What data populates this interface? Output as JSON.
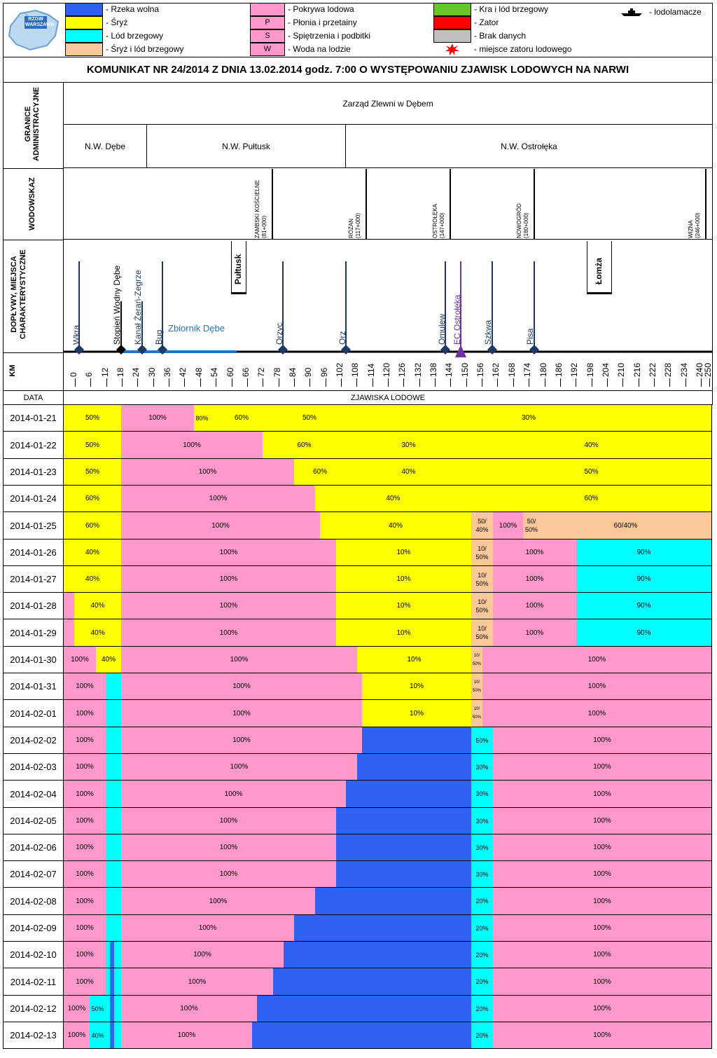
{
  "legend": {
    "logo_text": "RZGW WARSZAWA",
    "items": [
      {
        "color": "#2f62f0",
        "symbol": "",
        "label": "- Rzeka wolna"
      },
      {
        "color": "#ffff00",
        "symbol": "",
        "label": "- Śryż"
      },
      {
        "color": "#00ffff",
        "symbol": "",
        "label": "- Lód brzegowy"
      },
      {
        "color": "#fcc89a",
        "symbol": "",
        "label": "- Śryż i lód brzegowy"
      },
      {
        "color": "#ff99cc",
        "symbol": "",
        "label": "- Pokrywa lodowa"
      },
      {
        "color": "#ff99cc",
        "symbol": "P",
        "label": "- Płonia i przetainy"
      },
      {
        "color": "#ff99cc",
        "symbol": "S",
        "label": "- Spiętrzenia i podbitki"
      },
      {
        "color": "#ff99cc",
        "symbol": "W",
        "label": "- Woda na lodzie"
      },
      {
        "color": "#6ac42b",
        "symbol": "",
        "label": "- Kra i lód brzegowy"
      },
      {
        "color": "#ff0000",
        "symbol": "",
        "label": "- Zator"
      },
      {
        "color": "#c0c0c0",
        "symbol": "",
        "label": "- Brak danych"
      },
      {
        "color": "#ff0000",
        "symbol": "star",
        "label": "- miejsce zatoru lodowego"
      },
      {
        "color": "#000000",
        "symbol": "ship",
        "label": "- lodolamacze"
      }
    ]
  },
  "title": "KOMUNIKAT NR 24/2014 Z DNIA 13.02.2014 godz. 7:00 O WYSTĘPOWANIU ZJAWISK LODOWYCH NA NARWI",
  "row_labels": {
    "granice": "GRANICE ADMINISTRACYJNE",
    "wodowskaz": "WODOWSKAZ",
    "doplywy": "DOPŁYWY, MIEJSCA CHARAKTERYSTYCZNE",
    "km": "KM",
    "data": "DATA",
    "zjawiska": "ZJAWISKA LODOWE"
  },
  "admin": {
    "top": "Zarząd Zlewni w Dębem",
    "units": [
      "N.W. Dębe",
      "N.W. Pułtusk",
      "N.W. Ostrołęka"
    ]
  },
  "gauges": [
    {
      "name": "ZAMBSKI KOŚCIELNE",
      "km": "(81+000)"
    },
    {
      "name": "RÓŻAN",
      "km": "(117+000)"
    },
    {
      "name": "OSTROŁĘKA",
      "km": "(147+000)"
    },
    {
      "name": "NOWOGRÓD",
      "km": "(180+000)"
    },
    {
      "name": "WIZNA",
      "km": "(246+000)"
    }
  ],
  "tributaries": [
    "Wkra",
    "Stopień Wodny Dębe",
    "Kanał Żerań-Zegrze",
    "Bug",
    "Orzyc",
    "Orz",
    "Omulew",
    "EC Ostrołęka",
    "Szkwa",
    "Pisa"
  ],
  "towns": [
    "Pułtusk",
    "Łomża"
  ],
  "reservoir": "Zbiornik Dębe",
  "km_ticks": [
    "0",
    "6",
    "12",
    "18",
    "24",
    "30",
    "36",
    "42",
    "48",
    "54",
    "60",
    "66",
    "72",
    "78",
    "84",
    "90",
    "96",
    "102",
    "108",
    "114",
    "120",
    "126",
    "132",
    "138",
    "144",
    "150",
    "156",
    "162",
    "168",
    "174",
    "180",
    "186",
    "192",
    "198",
    "204",
    "210",
    "216",
    "222",
    "228",
    "234",
    "240",
    "250"
  ],
  "colors": {
    "Y": "#ffff00",
    "P": "#ff99cc",
    "C": "#00ffff",
    "B": "#2f62f0",
    "O": "#fcc89a"
  },
  "rows": [
    {
      "date": "2014-01-21",
      "segs": [
        [
          "Y",
          91,
          173,
          "50%"
        ],
        [
          "P",
          173,
          277,
          "100%"
        ],
        [
          "Y",
          277,
          300,
          "80%"
        ],
        [
          "Y",
          300,
          390,
          "60%"
        ],
        [
          "Y",
          390,
          494,
          "50%"
        ],
        [
          "Y",
          494,
          1016,
          "30%"
        ]
      ]
    },
    {
      "date": "2014-01-22",
      "segs": [
        [
          "Y",
          91,
          173,
          "50%"
        ],
        [
          "P",
          173,
          375,
          "100%"
        ],
        [
          "Y",
          375,
          494,
          "60%"
        ],
        [
          "Y",
          494,
          673,
          "30%"
        ],
        [
          "Y",
          673,
          1016,
          "40%"
        ]
      ]
    },
    {
      "date": "2014-01-23",
      "segs": [
        [
          "Y",
          91,
          173,
          "50%"
        ],
        [
          "P",
          173,
          420,
          "100%"
        ],
        [
          "Y",
          420,
          494,
          "60%"
        ],
        [
          "Y",
          494,
          673,
          "40%"
        ],
        [
          "Y",
          673,
          1016,
          "50%"
        ]
      ]
    },
    {
      "date": "2014-01-24",
      "segs": [
        [
          "Y",
          91,
          173,
          "60%"
        ],
        [
          "P",
          173,
          450,
          "100%"
        ],
        [
          "Y",
          450,
          673,
          "40%"
        ],
        [
          "Y",
          673,
          1016,
          "60%"
        ]
      ]
    },
    {
      "date": "2014-01-25",
      "segs": [
        [
          "Y",
          91,
          173,
          "60%"
        ],
        [
          "P",
          173,
          457,
          "100%"
        ],
        [
          "Y",
          457,
          673,
          "40%"
        ],
        [
          "O",
          673,
          704,
          "50/ 40%"
        ],
        [
          "P",
          704,
          747,
          "100%"
        ],
        [
          "O",
          747,
          771,
          "50/ 50%"
        ],
        [
          "O",
          771,
          1016,
          "60/40%"
        ]
      ]
    },
    {
      "date": "2014-01-26",
      "segs": [
        [
          "Y",
          91,
          173,
          "40%"
        ],
        [
          "P",
          173,
          480,
          "100%"
        ],
        [
          "Y",
          480,
          673,
          "10%"
        ],
        [
          "O",
          673,
          704,
          "10/ 50%"
        ],
        [
          "P",
          704,
          823,
          "100%"
        ],
        [
          "C",
          823,
          1016,
          "90%"
        ]
      ]
    },
    {
      "date": "2014-01-27",
      "segs": [
        [
          "Y",
          91,
          173,
          "40%"
        ],
        [
          "P",
          173,
          480,
          "100%"
        ],
        [
          "Y",
          480,
          673,
          "10%"
        ],
        [
          "O",
          673,
          704,
          "10/ 50%"
        ],
        [
          "P",
          704,
          823,
          "100%"
        ],
        [
          "C",
          823,
          1016,
          "90%"
        ]
      ]
    },
    {
      "date": "2014-01-28",
      "segs": [
        [
          "P",
          91,
          106,
          ""
        ],
        [
          "Y",
          106,
          173,
          "40%"
        ],
        [
          "P",
          173,
          480,
          "100%"
        ],
        [
          "Y",
          480,
          673,
          "10%"
        ],
        [
          "O",
          673,
          704,
          "10/ 50%"
        ],
        [
          "P",
          704,
          823,
          "100%"
        ],
        [
          "C",
          823,
          1016,
          "90%"
        ]
      ]
    },
    {
      "date": "2014-01-29",
      "segs": [
        [
          "P",
          91,
          106,
          ""
        ],
        [
          "Y",
          106,
          173,
          "40%"
        ],
        [
          "P",
          173,
          480,
          "100%"
        ],
        [
          "Y",
          480,
          673,
          "10%"
        ],
        [
          "O",
          673,
          704,
          "10/ 50%"
        ],
        [
          "P",
          704,
          823,
          "100%"
        ],
        [
          "C",
          823,
          1016,
          "90%"
        ]
      ]
    },
    {
      "date": "2014-01-30",
      "segs": [
        [
          "P",
          91,
          137,
          "100%"
        ],
        [
          "Y",
          137,
          173,
          "40%"
        ],
        [
          "P",
          173,
          510,
          "100%"
        ],
        [
          "Y",
          510,
          673,
          "10%"
        ],
        [
          "O",
          673,
          689,
          "10/ 50%"
        ],
        [
          "P",
          689,
          1016,
          "100%"
        ]
      ]
    },
    {
      "date": "2014-01-31",
      "segs": [
        [
          "P",
          91,
          151,
          "100%"
        ],
        [
          "C",
          151,
          157,
          ""
        ],
        [
          "C",
          157,
          163,
          ""
        ],
        [
          "C",
          163,
          168,
          ""
        ],
        [
          "C",
          168,
          173,
          ""
        ],
        [
          "P",
          173,
          517,
          "100%"
        ],
        [
          "Y",
          517,
          673,
          "10%"
        ],
        [
          "O",
          673,
          689,
          "10/ 50%"
        ],
        [
          "P",
          689,
          1016,
          "100%"
        ]
      ]
    },
    {
      "date": "2014-02-01",
      "segs": [
        [
          "P",
          91,
          151,
          "100%"
        ],
        [
          "C",
          151,
          157,
          ""
        ],
        [
          "C",
          157,
          163,
          ""
        ],
        [
          "C",
          163,
          168,
          ""
        ],
        [
          "C",
          168,
          173,
          ""
        ],
        [
          "P",
          173,
          517,
          "100%"
        ],
        [
          "Y",
          517,
          673,
          "10%"
        ],
        [
          "O",
          673,
          689,
          "10/ 50%"
        ],
        [
          "P",
          689,
          1016,
          "100%"
        ]
      ]
    },
    {
      "date": "2014-02-02",
      "segs": [
        [
          "P",
          91,
          151,
          "100%"
        ],
        [
          "C",
          151,
          157,
          ""
        ],
        [
          "C",
          157,
          163,
          ""
        ],
        [
          "C",
          163,
          168,
          ""
        ],
        [
          "C",
          168,
          173,
          ""
        ],
        [
          "P",
          173,
          517,
          "100%"
        ],
        [
          "B",
          517,
          673,
          ""
        ],
        [
          "C",
          673,
          704,
          "50%"
        ],
        [
          "P",
          704,
          1016,
          "100%"
        ]
      ]
    },
    {
      "date": "2014-02-03",
      "segs": [
        [
          "P",
          91,
          151,
          "100%"
        ],
        [
          "C",
          151,
          157,
          ""
        ],
        [
          "C",
          157,
          163,
          ""
        ],
        [
          "C",
          163,
          168,
          ""
        ],
        [
          "C",
          168,
          173,
          ""
        ],
        [
          "P",
          173,
          510,
          "100%"
        ],
        [
          "B",
          510,
          673,
          ""
        ],
        [
          "C",
          673,
          704,
          "30%"
        ],
        [
          "P",
          704,
          1016,
          "100%"
        ]
      ]
    },
    {
      "date": "2014-02-04",
      "segs": [
        [
          "P",
          91,
          151,
          "100%"
        ],
        [
          "C",
          151,
          157,
          ""
        ],
        [
          "C",
          157,
          163,
          ""
        ],
        [
          "C",
          163,
          168,
          ""
        ],
        [
          "C",
          168,
          173,
          ""
        ],
        [
          "P",
          173,
          494,
          "100%"
        ],
        [
          "B",
          494,
          673,
          ""
        ],
        [
          "C",
          673,
          704,
          "30%"
        ],
        [
          "P",
          704,
          1016,
          "100%"
        ]
      ]
    },
    {
      "date": "2014-02-05",
      "segs": [
        [
          "P",
          91,
          151,
          "100%"
        ],
        [
          "C",
          151,
          157,
          ""
        ],
        [
          "C",
          157,
          163,
          ""
        ],
        [
          "C",
          163,
          168,
          ""
        ],
        [
          "C",
          168,
          173,
          ""
        ],
        [
          "P",
          173,
          480,
          "100%"
        ],
        [
          "B",
          480,
          673,
          ""
        ],
        [
          "C",
          673,
          704,
          "30%"
        ],
        [
          "P",
          704,
          1016,
          "100%"
        ]
      ]
    },
    {
      "date": "2014-02-06",
      "segs": [
        [
          "P",
          91,
          151,
          "100%"
        ],
        [
          "C",
          151,
          157,
          ""
        ],
        [
          "C",
          157,
          163,
          ""
        ],
        [
          "C",
          163,
          168,
          ""
        ],
        [
          "C",
          168,
          173,
          ""
        ],
        [
          "P",
          173,
          480,
          "100%"
        ],
        [
          "B",
          480,
          673,
          ""
        ],
        [
          "C",
          673,
          704,
          "30%"
        ],
        [
          "P",
          704,
          1016,
          "100%"
        ]
      ]
    },
    {
      "date": "2014-02-07",
      "segs": [
        [
          "P",
          91,
          151,
          "100%"
        ],
        [
          "C",
          151,
          157,
          ""
        ],
        [
          "C",
          157,
          163,
          ""
        ],
        [
          "C",
          163,
          168,
          ""
        ],
        [
          "C",
          168,
          173,
          ""
        ],
        [
          "P",
          173,
          480,
          "100%"
        ],
        [
          "B",
          480,
          673,
          ""
        ],
        [
          "C",
          673,
          704,
          "30%"
        ],
        [
          "P",
          704,
          1016,
          "100%"
        ]
      ]
    },
    {
      "date": "2014-02-08",
      "segs": [
        [
          "P",
          91,
          151,
          "100%"
        ],
        [
          "C",
          151,
          157,
          ""
        ],
        [
          "C",
          157,
          163,
          ""
        ],
        [
          "C",
          163,
          168,
          ""
        ],
        [
          "C",
          168,
          173,
          ""
        ],
        [
          "P",
          173,
          450,
          "100%"
        ],
        [
          "B",
          450,
          673,
          ""
        ],
        [
          "C",
          673,
          704,
          "20%"
        ],
        [
          "P",
          704,
          1016,
          "100%"
        ]
      ]
    },
    {
      "date": "2014-02-09",
      "segs": [
        [
          "P",
          91,
          151,
          "100%"
        ],
        [
          "C",
          151,
          157,
          ""
        ],
        [
          "C",
          157,
          163,
          ""
        ],
        [
          "C",
          163,
          168,
          ""
        ],
        [
          "C",
          168,
          173,
          ""
        ],
        [
          "P",
          173,
          420,
          "100%"
        ],
        [
          "B",
          420,
          673,
          ""
        ],
        [
          "C",
          673,
          704,
          "20%"
        ],
        [
          "P",
          704,
          1016,
          "100%"
        ]
      ]
    },
    {
      "date": "2014-02-10",
      "segs": [
        [
          "P",
          91,
          151,
          "100%"
        ],
        [
          "C",
          151,
          157,
          ""
        ],
        [
          "B",
          157,
          163,
          ""
        ],
        [
          "C",
          163,
          168,
          ""
        ],
        [
          "C",
          168,
          173,
          ""
        ],
        [
          "P",
          173,
          405,
          "100%"
        ],
        [
          "B",
          405,
          673,
          ""
        ],
        [
          "C",
          673,
          704,
          "20%"
        ],
        [
          "P",
          704,
          1016,
          "100%"
        ]
      ]
    },
    {
      "date": "2014-02-11",
      "segs": [
        [
          "P",
          91,
          151,
          "100%"
        ],
        [
          "C",
          151,
          157,
          ""
        ],
        [
          "B",
          157,
          163,
          ""
        ],
        [
          "C",
          163,
          168,
          ""
        ],
        [
          "C",
          168,
          173,
          ""
        ],
        [
          "P",
          173,
          390,
          "100%"
        ],
        [
          "B",
          390,
          673,
          ""
        ],
        [
          "C",
          673,
          704,
          "20%"
        ],
        [
          "P",
          704,
          1016,
          "100%"
        ]
      ]
    },
    {
      "date": "2014-02-12",
      "segs": [
        [
          "P",
          91,
          128,
          "100%"
        ],
        [
          "C",
          128,
          151,
          "50%"
        ],
        [
          "C",
          151,
          157,
          ""
        ],
        [
          "B",
          157,
          163,
          ""
        ],
        [
          "C",
          163,
          168,
          ""
        ],
        [
          "C",
          168,
          173,
          ""
        ],
        [
          "P",
          173,
          367,
          "100%"
        ],
        [
          "B",
          367,
          673,
          ""
        ],
        [
          "C",
          673,
          704,
          "20%"
        ],
        [
          "P",
          704,
          1016,
          "100%"
        ]
      ]
    },
    {
      "date": "2014-02-13",
      "segs": [
        [
          "P",
          91,
          128,
          "100%"
        ],
        [
          "C",
          128,
          151,
          "40%"
        ],
        [
          "C",
          151,
          157,
          ""
        ],
        [
          "B",
          157,
          163,
          ""
        ],
        [
          "C",
          163,
          168,
          ""
        ],
        [
          "C",
          168,
          173,
          ""
        ],
        [
          "P",
          173,
          360,
          "100%"
        ],
        [
          "B",
          360,
          673,
          ""
        ],
        [
          "C",
          673,
          704,
          "20%"
        ],
        [
          "P",
          704,
          1016,
          "100%"
        ]
      ]
    }
  ]
}
